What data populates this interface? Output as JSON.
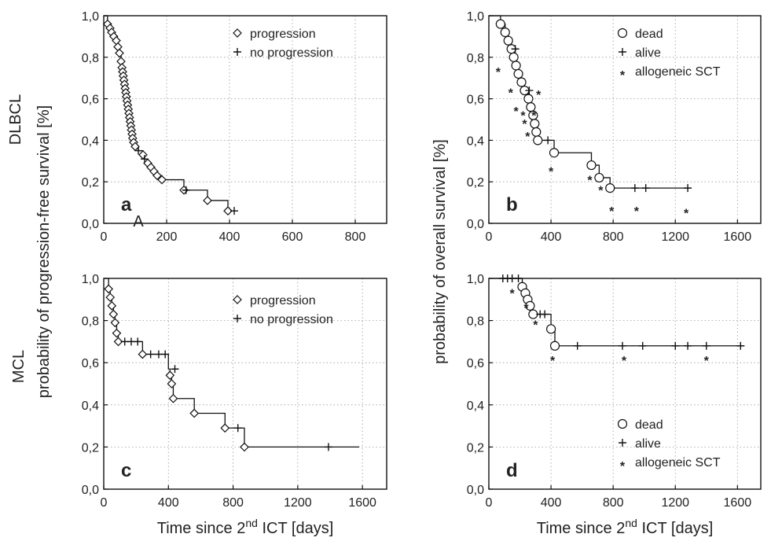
{
  "chart_data": [
    {
      "panel": "a",
      "type": "line",
      "xlim": [
        0,
        900
      ],
      "ylim": [
        0,
        1
      ],
      "xticks": [
        "0",
        "200",
        "400",
        "600",
        "800"
      ],
      "yticks": [
        "0,0",
        "0,2",
        "0,4",
        "0,6",
        "0,8",
        "1,0"
      ],
      "grid": true,
      "legend_position": "top-right",
      "annotation": "A",
      "annotation_x": 110,
      "legend": [
        {
          "marker": "diamond",
          "label": "progression"
        },
        {
          "marker": "plus",
          "label": "no progression"
        }
      ],
      "steps": [
        [
          0,
          1.0
        ],
        [
          12,
          0.96
        ],
        [
          20,
          0.94
        ],
        [
          25,
          0.92
        ],
        [
          32,
          0.9
        ],
        [
          40,
          0.88
        ],
        [
          45,
          0.85
        ],
        [
          50,
          0.82
        ],
        [
          55,
          0.78
        ],
        [
          58,
          0.75
        ],
        [
          60,
          0.73
        ],
        [
          62,
          0.71
        ],
        [
          64,
          0.69
        ],
        [
          66,
          0.67
        ],
        [
          68,
          0.65
        ],
        [
          70,
          0.63
        ],
        [
          72,
          0.61
        ],
        [
          74,
          0.59
        ],
        [
          76,
          0.57
        ],
        [
          78,
          0.55
        ],
        [
          80,
          0.53
        ],
        [
          82,
          0.51
        ],
        [
          84,
          0.49
        ],
        [
          86,
          0.47
        ],
        [
          88,
          0.45
        ],
        [
          90,
          0.43
        ],
        [
          92,
          0.41
        ],
        [
          95,
          0.39
        ],
        [
          100,
          0.37
        ],
        [
          110,
          0.35
        ],
        [
          125,
          0.33
        ],
        [
          130,
          0.31
        ],
        [
          140,
          0.29
        ],
        [
          150,
          0.27
        ],
        [
          160,
          0.25
        ],
        [
          170,
          0.23
        ],
        [
          185,
          0.21
        ],
        [
          255,
          0.16
        ],
        [
          330,
          0.11
        ],
        [
          395,
          0.06
        ]
      ],
      "end_x": 420,
      "events": [
        [
          12,
          0.96
        ],
        [
          20,
          0.94
        ],
        [
          25,
          0.92
        ],
        [
          32,
          0.9
        ],
        [
          40,
          0.88
        ],
        [
          45,
          0.85
        ],
        [
          50,
          0.82
        ],
        [
          55,
          0.78
        ],
        [
          58,
          0.75
        ],
        [
          60,
          0.73
        ],
        [
          62,
          0.71
        ],
        [
          64,
          0.69
        ],
        [
          66,
          0.67
        ],
        [
          68,
          0.65
        ],
        [
          70,
          0.63
        ],
        [
          72,
          0.61
        ],
        [
          74,
          0.59
        ],
        [
          76,
          0.57
        ],
        [
          78,
          0.55
        ],
        [
          80,
          0.53
        ],
        [
          82,
          0.51
        ],
        [
          84,
          0.49
        ],
        [
          86,
          0.47
        ],
        [
          88,
          0.45
        ],
        [
          90,
          0.43
        ],
        [
          92,
          0.41
        ],
        [
          95,
          0.39
        ],
        [
          100,
          0.37
        ],
        [
          125,
          0.33
        ],
        [
          140,
          0.29
        ],
        [
          150,
          0.27
        ],
        [
          160,
          0.25
        ],
        [
          170,
          0.23
        ],
        [
          185,
          0.21
        ],
        [
          255,
          0.16
        ],
        [
          330,
          0.11
        ],
        [
          395,
          0.06
        ]
      ],
      "censored": [
        [
          110,
          0.35
        ],
        [
          130,
          0.31
        ],
        [
          262,
          0.16
        ],
        [
          415,
          0.06
        ]
      ],
      "sct": []
    },
    {
      "panel": "b",
      "type": "line",
      "xlim": [
        0,
        1750
      ],
      "ylim": [
        0,
        1
      ],
      "xticks": [
        "0",
        "400",
        "800",
        "1200",
        "1600"
      ],
      "yticks": [
        "0,0",
        "0,2",
        "0,4",
        "0,6",
        "0,8",
        "1,0"
      ],
      "grid": true,
      "legend_position": "top-right",
      "legend": [
        {
          "marker": "circle",
          "label": "dead"
        },
        {
          "marker": "plus",
          "label": "alive"
        },
        {
          "marker": "star",
          "label": "allogeneic SCT"
        }
      ],
      "steps": [
        [
          0,
          1.0
        ],
        [
          75,
          0.96
        ],
        [
          105,
          0.92
        ],
        [
          125,
          0.88
        ],
        [
          145,
          0.84
        ],
        [
          160,
          0.8
        ],
        [
          175,
          0.76
        ],
        [
          190,
          0.72
        ],
        [
          210,
          0.68
        ],
        [
          230,
          0.64
        ],
        [
          255,
          0.6
        ],
        [
          270,
          0.56
        ],
        [
          285,
          0.52
        ],
        [
          295,
          0.48
        ],
        [
          305,
          0.44
        ],
        [
          315,
          0.4
        ],
        [
          420,
          0.34
        ],
        [
          660,
          0.28
        ],
        [
          710,
          0.22
        ],
        [
          780,
          0.17
        ]
      ],
      "end_x": 1280,
      "events": [
        [
          75,
          0.96
        ],
        [
          105,
          0.92
        ],
        [
          125,
          0.88
        ],
        [
          145,
          0.84
        ],
        [
          160,
          0.8
        ],
        [
          175,
          0.76
        ],
        [
          190,
          0.72
        ],
        [
          210,
          0.68
        ],
        [
          230,
          0.64
        ],
        [
          255,
          0.6
        ],
        [
          270,
          0.56
        ],
        [
          285,
          0.52
        ],
        [
          295,
          0.48
        ],
        [
          305,
          0.44
        ],
        [
          315,
          0.4
        ],
        [
          420,
          0.34
        ],
        [
          660,
          0.28
        ],
        [
          710,
          0.22
        ],
        [
          780,
          0.17
        ]
      ],
      "censored": [
        [
          170,
          0.84
        ],
        [
          260,
          0.64
        ],
        [
          380,
          0.4
        ],
        [
          940,
          0.17
        ],
        [
          1010,
          0.17
        ],
        [
          1280,
          0.17
        ]
      ],
      "sct": [
        [
          60,
          0.75
        ],
        [
          140,
          0.65
        ],
        [
          175,
          0.56
        ],
        [
          220,
          0.54
        ],
        [
          230,
          0.5
        ],
        [
          250,
          0.44
        ],
        [
          290,
          0.54
        ],
        [
          320,
          0.64
        ],
        [
          400,
          0.27
        ],
        [
          650,
          0.23
        ],
        [
          720,
          0.18
        ],
        [
          790,
          0.08
        ],
        [
          950,
          0.08
        ],
        [
          1270,
          0.07
        ]
      ]
    },
    {
      "panel": "c",
      "type": "line",
      "xlim": [
        0,
        1750
      ],
      "ylim": [
        0,
        1
      ],
      "xticks": [
        "0",
        "400",
        "800",
        "1200",
        "1600"
      ],
      "yticks": [
        "0,0",
        "0,2",
        "0,4",
        "0,6",
        "0,8",
        "1,0"
      ],
      "grid": true,
      "legend_position": "top-right",
      "legend": [
        {
          "marker": "diamond",
          "label": "progression"
        },
        {
          "marker": "plus",
          "label": "no progression"
        }
      ],
      "steps": [
        [
          0,
          1.0
        ],
        [
          30,
          0.95
        ],
        [
          40,
          0.91
        ],
        [
          50,
          0.87
        ],
        [
          60,
          0.83
        ],
        [
          70,
          0.79
        ],
        [
          80,
          0.74
        ],
        [
          90,
          0.7
        ],
        [
          240,
          0.64
        ],
        [
          400,
          0.57
        ],
        [
          410,
          0.54
        ],
        [
          420,
          0.5
        ],
        [
          430,
          0.43
        ],
        [
          560,
          0.36
        ],
        [
          750,
          0.29
        ],
        [
          870,
          0.2
        ]
      ],
      "end_x": 1580,
      "events": [
        [
          30,
          0.95
        ],
        [
          40,
          0.91
        ],
        [
          50,
          0.87
        ],
        [
          60,
          0.83
        ],
        [
          70,
          0.79
        ],
        [
          80,
          0.74
        ],
        [
          90,
          0.7
        ],
        [
          240,
          0.64
        ],
        [
          410,
          0.54
        ],
        [
          420,
          0.5
        ],
        [
          430,
          0.43
        ],
        [
          560,
          0.36
        ],
        [
          750,
          0.29
        ],
        [
          870,
          0.2
        ]
      ],
      "censored": [
        [
          130,
          0.7
        ],
        [
          170,
          0.7
        ],
        [
          210,
          0.7
        ],
        [
          290,
          0.64
        ],
        [
          340,
          0.64
        ],
        [
          380,
          0.64
        ],
        [
          440,
          0.57
        ],
        [
          830,
          0.29
        ],
        [
          1390,
          0.2
        ]
      ],
      "sct": []
    },
    {
      "panel": "d",
      "type": "line",
      "xlim": [
        0,
        1750
      ],
      "ylim": [
        0,
        1
      ],
      "xticks": [
        "0",
        "400",
        "800",
        "1200",
        "1600"
      ],
      "yticks": [
        "0,0",
        "0,2",
        "0,4",
        "0,6",
        "0,8",
        "1,0"
      ],
      "grid": true,
      "legend_position": "bottom-right",
      "legend": [
        {
          "marker": "circle",
          "label": "dead"
        },
        {
          "marker": "plus",
          "label": "alive"
        },
        {
          "marker": "star",
          "label": "allogeneic SCT"
        }
      ],
      "steps": [
        [
          0,
          1.0
        ],
        [
          215,
          0.96
        ],
        [
          235,
          0.93
        ],
        [
          250,
          0.9
        ],
        [
          265,
          0.87
        ],
        [
          285,
          0.83
        ],
        [
          400,
          0.76
        ],
        [
          425,
          0.68
        ]
      ],
      "end_x": 1620,
      "events": [
        [
          215,
          0.96
        ],
        [
          235,
          0.93
        ],
        [
          250,
          0.9
        ],
        [
          265,
          0.87
        ],
        [
          285,
          0.83
        ],
        [
          400,
          0.76
        ],
        [
          425,
          0.68
        ]
      ],
      "censored": [
        [
          90,
          1.0
        ],
        [
          120,
          1.0
        ],
        [
          150,
          1.0
        ],
        [
          190,
          1.0
        ],
        [
          330,
          0.83
        ],
        [
          360,
          0.83
        ],
        [
          570,
          0.68
        ],
        [
          860,
          0.68
        ],
        [
          990,
          0.68
        ],
        [
          1200,
          0.68
        ],
        [
          1280,
          0.68
        ],
        [
          1400,
          0.68
        ],
        [
          1620,
          0.68
        ]
      ],
      "sct": [
        [
          150,
          0.95
        ],
        [
          240,
          0.88
        ],
        [
          300,
          0.8
        ],
        [
          410,
          0.63
        ],
        [
          870,
          0.63
        ],
        [
          1400,
          0.63
        ]
      ]
    }
  ],
  "labels": {
    "row_top": "DLBCL",
    "row_bottom": "MCL",
    "ylabel_left": "probability of progression-free survival [%]",
    "ylabel_right": "probability of overall survival [%]",
    "xlabel_prefix": "Time since 2",
    "xlabel_sup": "nd",
    "xlabel_suffix": " ICT [days]"
  }
}
